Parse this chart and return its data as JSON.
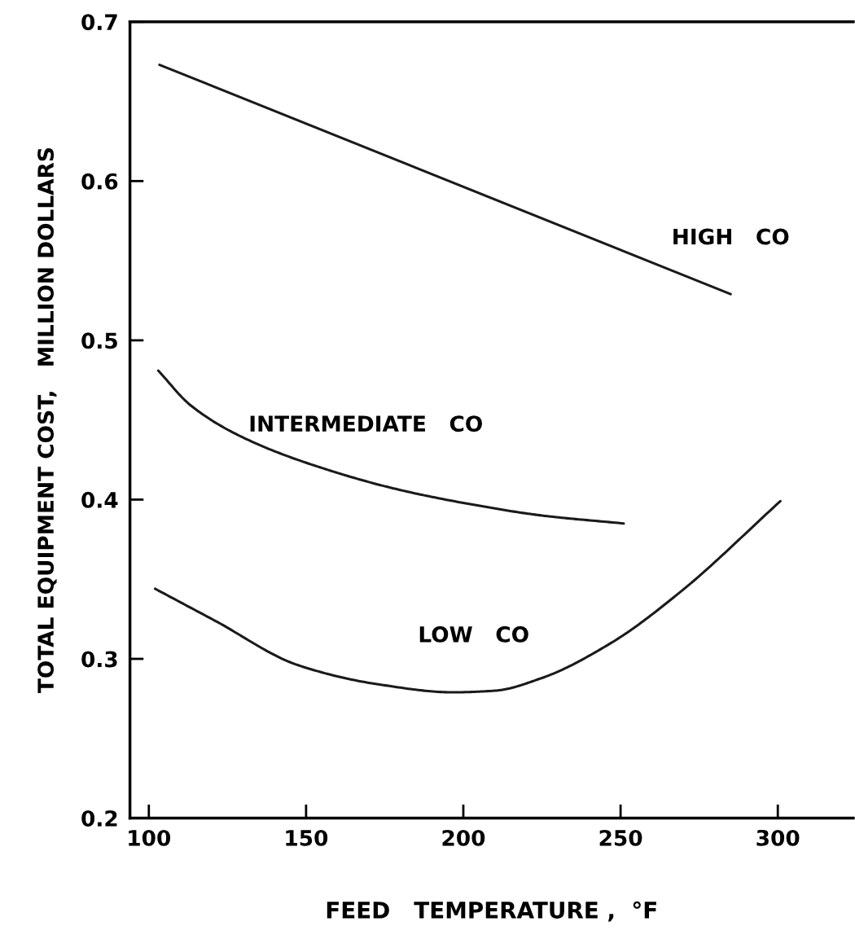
{
  "chart_data": {
    "type": "line",
    "xlabel": "FEED   TEMPERATURE ,  °F",
    "ylabel": "TOTAL EQUIPMENT COST,   MILLION DOLLARS",
    "xlim": [
      94,
      324
    ],
    "ylim": [
      0.2,
      0.7
    ],
    "xticks": [
      100,
      150,
      200,
      250,
      300
    ],
    "yticks": [
      {
        "value": 0.2,
        "label": "0.2"
      },
      {
        "value": 0.3,
        "label": "0.3"
      },
      {
        "value": 0.4,
        "label": "0.4"
      },
      {
        "value": 0.5,
        "label": "0.5"
      },
      {
        "value": 0.6,
        "label": "0.6"
      },
      {
        "value": 0.7,
        "label": "0.7"
      }
    ],
    "grid": false,
    "marker": "none",
    "line_style": "solid",
    "series": [
      {
        "name": "HIGH   CO",
        "color": "#1a1a1a",
        "x": [
          103.4,
          285
        ],
        "values": [
          0.673,
          0.529
        ]
      },
      {
        "name": "INTERMEDIATE   CO",
        "color": "#1a1a1a",
        "x": [
          103,
          113.4,
          131,
          158,
          180,
          202.6,
          225,
          251
        ],
        "values": [
          0.481,
          0.459,
          0.438,
          0.418,
          0.406,
          0.397,
          0.39,
          0.385
        ]
      },
      {
        "name": "LOW   CO",
        "color": "#1a1a1a",
        "x": [
          102,
          121,
          147.5,
          173,
          196.6,
          210,
          225,
          247,
          269,
          300.8
        ],
        "values": [
          0.344,
          0.324,
          0.296,
          0.284,
          0.279,
          0.28,
          0.288,
          0.31,
          0.342,
          0.399
        ]
      }
    ]
  }
}
